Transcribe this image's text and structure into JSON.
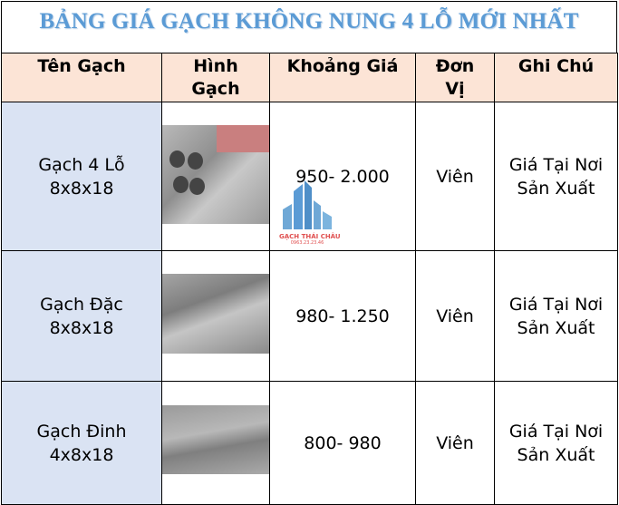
{
  "title": "BẢNG GIÁ GẠCH KHÔNG NUNG 4 LỖ MỚI NHẤT",
  "headers": [
    "Tên Gạch",
    "Hình Gạch",
    "Khoảng Giá",
    "Đơn Vị",
    "Ghi Chú"
  ],
  "rows": [
    {
      "name_line1": "Gạch 4 Lỗ",
      "name_line2": "8x8x18",
      "image": "brick-4-hole-photo",
      "price": "950- 2.000",
      "unit": "Viên",
      "note_line1": "Giá Tại Nơi",
      "note_line2": "Sản Xuất"
    },
    {
      "name_line1": "Gạch Đặc",
      "name_line2": "8x8x18",
      "image": "solid-brick-photo",
      "price": "980- 1.250",
      "unit": "Viên",
      "note_line1": "Giá Tại Nơi",
      "note_line2": "Sản Xuất"
    },
    {
      "name_line1": "Gạch Đinh",
      "name_line2": "4x8x18",
      "image": "nail-brick-photo",
      "price": "800- 980",
      "unit": "Viên",
      "note_line1": "Giá Tại Nơi",
      "note_line2": "Sản Xuất"
    }
  ],
  "watermark": {
    "brand": "GẠCH THÁI CHÂU",
    "phone": "0963.23.23.46"
  },
  "colors": {
    "title": "#5b9bd5",
    "header_bg": "#fce4d6",
    "name_col_bg": "#dae3f3"
  }
}
